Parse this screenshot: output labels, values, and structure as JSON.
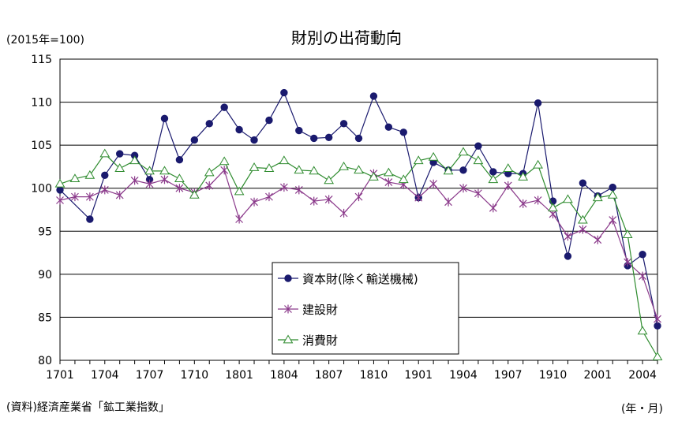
{
  "chart_data": {
    "type": "line",
    "title": "財別の出荷動向",
    "ylabel": "(2015年=100)",
    "xlabel": "(年・月)",
    "source": "(資料)経済産業省「鉱工業指数」",
    "ylim": [
      80,
      115
    ],
    "yticks": [
      80,
      85,
      90,
      95,
      100,
      105,
      110,
      115
    ],
    "x_tick_labels": [
      "1701",
      "1704",
      "1707",
      "1710",
      "1801",
      "1804",
      "1807",
      "1810",
      "1901",
      "1904",
      "1907",
      "1910",
      "2001",
      "2004"
    ],
    "categories": [
      "1701",
      "1702",
      "1703",
      "1704",
      "1705",
      "1706",
      "1707",
      "1708",
      "1709",
      "1710",
      "1711",
      "1712",
      "1801",
      "1802",
      "1803",
      "1804",
      "1805",
      "1806",
      "1807",
      "1808",
      "1809",
      "1810",
      "1811",
      "1812",
      "1901",
      "1902",
      "1903",
      "1904",
      "1905",
      "1906",
      "1907",
      "1908",
      "1909",
      "1910",
      "1911",
      "1912",
      "2001",
      "2002",
      "2003",
      "2004",
      "2005"
    ],
    "grid": true,
    "legend": "center-bottom",
    "series": [
      {
        "name": "資本財(除く輸送機械)",
        "color": "#1a1a6e",
        "marker": "circle",
        "values": [
          99.8,
          null,
          96.4,
          101.5,
          104.0,
          103.8,
          101.0,
          108.1,
          103.3,
          105.6,
          107.5,
          109.4,
          106.8,
          105.6,
          107.9,
          111.1,
          106.7,
          105.8,
          105.9,
          107.5,
          105.8,
          110.7,
          107.1,
          106.5,
          98.9,
          103.0,
          102.1,
          102.1,
          104.9,
          101.9,
          101.7,
          101.7,
          109.9,
          98.5,
          92.1,
          100.6,
          99.1,
          100.1,
          91.0,
          92.3,
          84.0
        ]
      },
      {
        "name": "建設財",
        "color": "#8b3a8b",
        "marker": "star",
        "values": [
          98.6,
          99.0,
          99.0,
          99.8,
          99.2,
          100.9,
          100.5,
          101.0,
          100.0,
          99.5,
          100.3,
          102.1,
          96.4,
          98.4,
          99.0,
          100.1,
          99.8,
          98.5,
          98.7,
          97.1,
          99.0,
          101.7,
          100.7,
          100.4,
          98.9,
          100.5,
          98.4,
          100.0,
          99.4,
          97.7,
          100.3,
          98.2,
          98.6,
          97.0,
          94.4,
          95.2,
          94.0,
          96.3,
          91.4,
          89.8,
          84.8
        ]
      },
      {
        "name": "消費財",
        "color": "#2e8b2e",
        "marker": "triangle",
        "values": [
          100.5,
          101.1,
          101.5,
          104.0,
          102.3,
          103.2,
          102.0,
          102.0,
          101.1,
          99.2,
          101.8,
          103.1,
          99.6,
          102.4,
          102.3,
          103.2,
          102.1,
          102.0,
          100.9,
          102.5,
          102.1,
          101.3,
          101.8,
          101.0,
          103.2,
          103.6,
          102.0,
          104.2,
          103.2,
          101.0,
          102.3,
          101.3,
          102.7,
          97.7,
          98.7,
          96.3,
          98.9,
          99.2,
          94.6,
          83.4,
          80.4
        ]
      }
    ]
  }
}
